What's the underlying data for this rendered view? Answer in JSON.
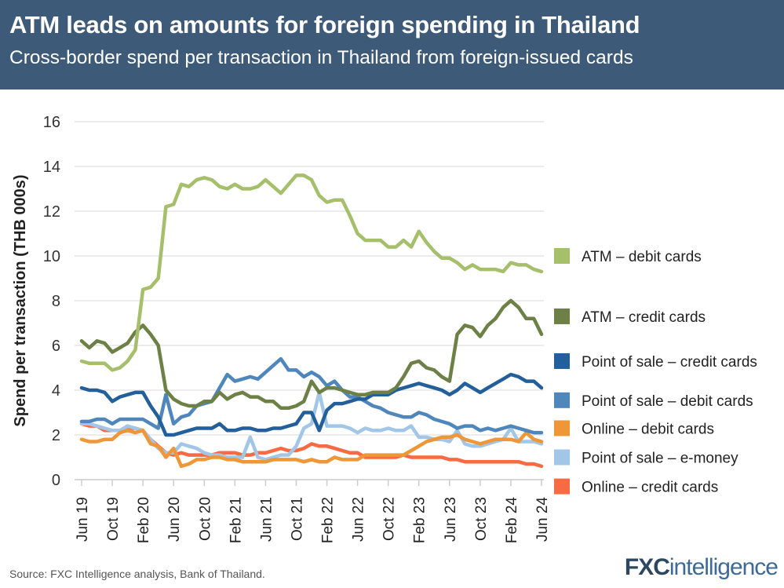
{
  "header": {
    "title": "ATM leads on amounts for foreign spending in Thailand",
    "subtitle": "Cross-border spend per transaction in Thailand from foreign-issued cards"
  },
  "footer": {
    "source": "Source: FXC Intelligence analysis, Bank of Thailand.",
    "logo_a": "FXC",
    "logo_b": "intelligence"
  },
  "chart_data": {
    "type": "line",
    "title": "ATM leads on amounts for foreign spending in Thailand",
    "ylabel": "Spend per transaction (THB 000s)",
    "xlabel": "",
    "ylim": [
      0,
      16
    ],
    "yticks": [
      0,
      2,
      4,
      6,
      8,
      10,
      12,
      14,
      16
    ],
    "x_start": "Jun 19",
    "x_end": "Jun 24",
    "x_frequency": "monthly",
    "xtick_labels": [
      {
        "i": 0,
        "label": "Jun 19"
      },
      {
        "i": 4,
        "label": "Oct 19"
      },
      {
        "i": 8,
        "label": "Feb 20"
      },
      {
        "i": 12,
        "label": "Jun 20"
      },
      {
        "i": 16,
        "label": "Oct 20"
      },
      {
        "i": 20,
        "label": "Feb 21"
      },
      {
        "i": 24,
        "label": "Jun 21"
      },
      {
        "i": 28,
        "label": "Oct 21"
      },
      {
        "i": 32,
        "label": "Feb 22"
      },
      {
        "i": 36,
        "label": "Jun 22"
      },
      {
        "i": 40,
        "label": "Oct 22"
      },
      {
        "i": 44,
        "label": "Feb 23"
      },
      {
        "i": 48,
        "label": "Jun 23"
      },
      {
        "i": 52,
        "label": "Oct 23"
      },
      {
        "i": 56,
        "label": "Feb 24"
      },
      {
        "i": 60,
        "label": "Jun 24"
      }
    ],
    "grid": true,
    "legend_placement": "right",
    "series": [
      {
        "name": "ATM – debit cards",
        "color": "#a6bf6b",
        "legend_y": 10.0,
        "values": [
          5.3,
          5.2,
          5.2,
          5.2,
          4.9,
          5.0,
          5.3,
          5.8,
          8.5,
          8.6,
          9.0,
          12.2,
          12.3,
          13.2,
          13.1,
          13.4,
          13.5,
          13.4,
          13.1,
          13.0,
          13.2,
          13.0,
          13.0,
          13.1,
          13.4,
          13.1,
          12.8,
          13.2,
          13.6,
          13.6,
          13.4,
          12.7,
          12.4,
          12.5,
          12.5,
          11.8,
          11.0,
          10.7,
          10.7,
          10.7,
          10.4,
          10.4,
          10.7,
          10.4,
          11.1,
          10.6,
          10.2,
          9.9,
          9.9,
          9.7,
          9.4,
          9.6,
          9.4,
          9.4,
          9.4,
          9.3,
          9.7,
          9.6,
          9.6,
          9.4,
          9.3
        ]
      },
      {
        "name": "ATM – credit cards",
        "color": "#6d8045",
        "legend_y": 7.3,
        "values": [
          6.2,
          5.9,
          6.2,
          6.1,
          5.7,
          5.9,
          6.1,
          6.6,
          6.9,
          6.5,
          6.0,
          4.0,
          3.6,
          3.4,
          3.3,
          3.3,
          3.5,
          3.5,
          3.9,
          3.6,
          3.8,
          3.9,
          3.7,
          3.7,
          3.5,
          3.5,
          3.2,
          3.2,
          3.3,
          3.5,
          4.4,
          3.9,
          4.1,
          4.1,
          4.0,
          3.9,
          3.8,
          3.8,
          3.9,
          3.9,
          3.9,
          4.1,
          4.6,
          5.2,
          5.3,
          5.0,
          4.9,
          4.6,
          4.4,
          6.5,
          6.9,
          6.8,
          6.4,
          6.9,
          7.2,
          7.7,
          8.0,
          7.7,
          7.2,
          7.2,
          6.5
        ]
      },
      {
        "name": "Point of sale – credit cards",
        "color": "#23609b",
        "legend_y": 5.3,
        "values": [
          4.1,
          4.0,
          4.0,
          3.9,
          3.5,
          3.7,
          3.8,
          3.9,
          3.9,
          3.3,
          2.8,
          2.0,
          2.0,
          2.1,
          2.2,
          2.3,
          2.3,
          2.3,
          2.5,
          2.2,
          2.2,
          2.3,
          2.3,
          2.2,
          2.2,
          2.3,
          2.3,
          2.4,
          2.5,
          3.0,
          3.0,
          2.2,
          3.1,
          3.4,
          3.4,
          3.5,
          3.6,
          3.6,
          3.8,
          3.8,
          3.8,
          4.0,
          4.1,
          4.2,
          4.3,
          4.2,
          4.1,
          4.0,
          3.8,
          4.0,
          4.3,
          4.1,
          3.9,
          4.1,
          4.3,
          4.5,
          4.7,
          4.6,
          4.4,
          4.4,
          4.1
        ]
      },
      {
        "name": "Point of sale – debit cards",
        "color": "#4f87bd",
        "legend_y": 3.55,
        "values": [
          2.6,
          2.6,
          2.7,
          2.7,
          2.5,
          2.7,
          2.7,
          2.7,
          2.7,
          2.5,
          2.3,
          3.8,
          2.5,
          2.8,
          2.9,
          3.3,
          3.4,
          3.5,
          4.1,
          4.7,
          4.4,
          4.5,
          4.6,
          4.5,
          4.8,
          5.1,
          5.4,
          4.9,
          4.9,
          4.6,
          4.8,
          4.6,
          4.2,
          4.4,
          4.0,
          3.7,
          3.7,
          3.5,
          3.3,
          3.2,
          3.0,
          2.9,
          2.8,
          2.8,
          3.0,
          2.9,
          2.7,
          2.6,
          2.5,
          2.3,
          2.4,
          2.4,
          2.2,
          2.3,
          2.2,
          2.3,
          2.4,
          2.3,
          2.2,
          2.1,
          2.1
        ]
      },
      {
        "name": "Online – debit cards",
        "color": "#ef9637",
        "legend_y": 2.3,
        "values": [
          1.8,
          1.7,
          1.7,
          1.8,
          1.8,
          2.1,
          2.2,
          2.1,
          2.2,
          1.6,
          1.5,
          1.0,
          1.4,
          0.6,
          0.7,
          0.9,
          0.9,
          1.0,
          1.0,
          0.9,
          0.9,
          0.8,
          0.8,
          0.8,
          0.8,
          0.9,
          0.9,
          0.9,
          0.9,
          0.8,
          0.9,
          0.8,
          0.8,
          1.0,
          0.9,
          0.9,
          0.9,
          1.1,
          1.1,
          1.1,
          1.1,
          1.1,
          1.1,
          1.3,
          1.5,
          1.7,
          1.8,
          1.9,
          1.9,
          2.0,
          1.8,
          1.7,
          1.6,
          1.7,
          1.8,
          1.8,
          1.8,
          1.7,
          2.1,
          1.8,
          1.7
        ]
      },
      {
        "name": "Point of sale – e-money",
        "color": "#a2c6e8",
        "legend_y": 1.0,
        "values": [
          2.5,
          2.5,
          2.4,
          2.3,
          2.2,
          2.2,
          2.4,
          2.3,
          2.2,
          1.8,
          1.4,
          1.2,
          1.2,
          1.6,
          1.5,
          1.4,
          1.2,
          1.1,
          1.1,
          1.0,
          1.0,
          1.0,
          1.9,
          1.0,
          0.9,
          1.0,
          1.1,
          1.1,
          1.5,
          2.3,
          2.5,
          3.9,
          2.4,
          2.4,
          2.4,
          2.3,
          2.1,
          2.3,
          2.2,
          2.2,
          2.3,
          2.2,
          2.2,
          2.4,
          1.9,
          1.9,
          1.8,
          1.8,
          1.7,
          2.2,
          1.6,
          1.5,
          1.5,
          1.6,
          1.7,
          1.8,
          2.3,
          1.7,
          1.7,
          1.7,
          1.6
        ]
      },
      {
        "name": "Online – credit cards",
        "color": "#f86a44",
        "legend_y": -0.3,
        "values": [
          2.5,
          2.4,
          2.4,
          2.2,
          2.2,
          2.2,
          2.3,
          2.3,
          2.2,
          1.8,
          1.5,
          1.2,
          1.1,
          1.2,
          1.1,
          1.1,
          1.1,
          1.1,
          1.2,
          1.2,
          1.2,
          1.1,
          1.1,
          1.2,
          1.2,
          1.3,
          1.4,
          1.3,
          1.3,
          1.4,
          1.6,
          1.5,
          1.5,
          1.4,
          1.3,
          1.2,
          1.2,
          1.0,
          1.0,
          1.0,
          1.0,
          1.0,
          1.1,
          1.0,
          1.0,
          1.0,
          1.0,
          1.0,
          0.9,
          0.9,
          0.8,
          0.8,
          0.8,
          0.8,
          0.8,
          0.8,
          0.8,
          0.8,
          0.7,
          0.7,
          0.6
        ]
      }
    ]
  }
}
